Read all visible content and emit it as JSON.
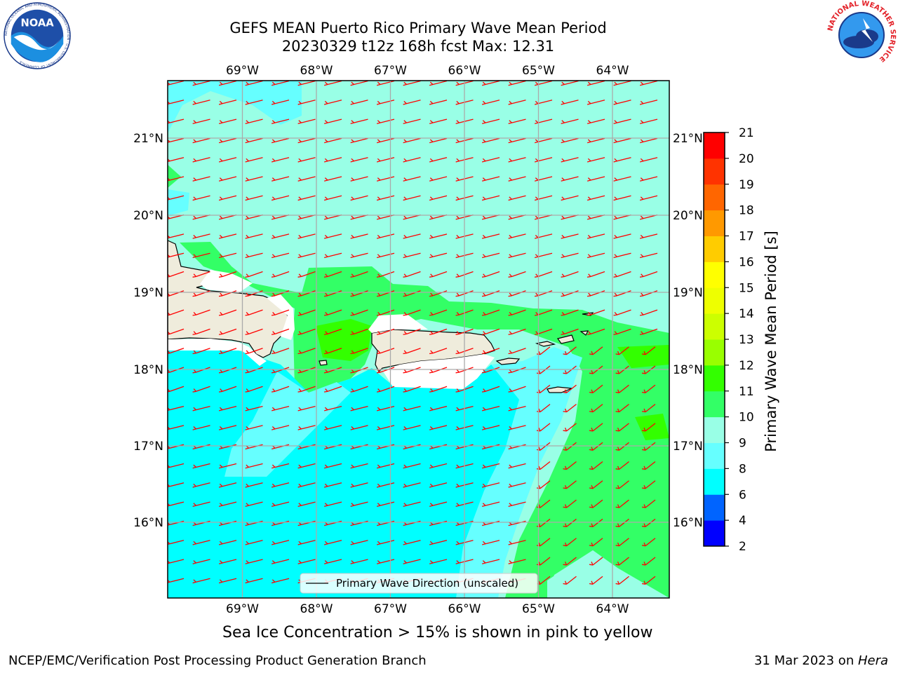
{
  "header": {
    "title_line1": "GEFS MEAN Puerto Rico Primary Wave Mean Period",
    "title_line2": "20230329 t12z 168h fcst   Max: 12.31"
  },
  "logos": {
    "left": {
      "name": "noaa-logo",
      "text": "NOAA",
      "ring_text": "NATIONAL OCEANIC AND ATMOSPHERIC ADMINISTRATION · U.S. DEPARTMENT OF COMMERCE"
    },
    "right": {
      "name": "nws-logo",
      "ring_text": "NATIONAL WEATHER SERVICE"
    }
  },
  "map": {
    "lon_labels": [
      "69°W",
      "68°W",
      "67°W",
      "66°W",
      "65°W",
      "64°W"
    ],
    "lat_labels": [
      "21°N",
      "20°N",
      "19°N",
      "18°N",
      "17°N",
      "16°N"
    ],
    "legend_label": "Primary Wave Direction (unscaled)",
    "arrow_color": "#ff0000",
    "land_color": "#efecdc",
    "fill_colors": {
      "8-9": "#00ffff",
      "9-10": "#66ffff",
      "10-11": "#99ffe6",
      "11-12": "#33ff66",
      "12-13": "#33ff00"
    }
  },
  "colorbar": {
    "title": "Primary Wave Mean Period [s]",
    "tick_labels": [
      "2",
      "4",
      "6",
      "8",
      "9",
      "10",
      "11",
      "12",
      "13",
      "14",
      "15",
      "16",
      "17",
      "18",
      "19",
      "20",
      "21"
    ],
    "colors": [
      "#0000ff",
      "#0064ff",
      "#00ffff",
      "#66ffff",
      "#99ffe6",
      "#33ff66",
      "#33ff00",
      "#99ff00",
      "#ccff00",
      "#eeff00",
      "#ffff00",
      "#ffcc00",
      "#ff9900",
      "#ff6600",
      "#ff3300",
      "#ff0000"
    ]
  },
  "notes": {
    "ice": "Sea Ice Concentration > 15% is shown in pink to yellow"
  },
  "footer": {
    "left": "NCEP/EMC/Verification Post Processing Product Generation Branch",
    "right_prefix": "31 Mar 2023 on ",
    "right_host": "Hera"
  }
}
